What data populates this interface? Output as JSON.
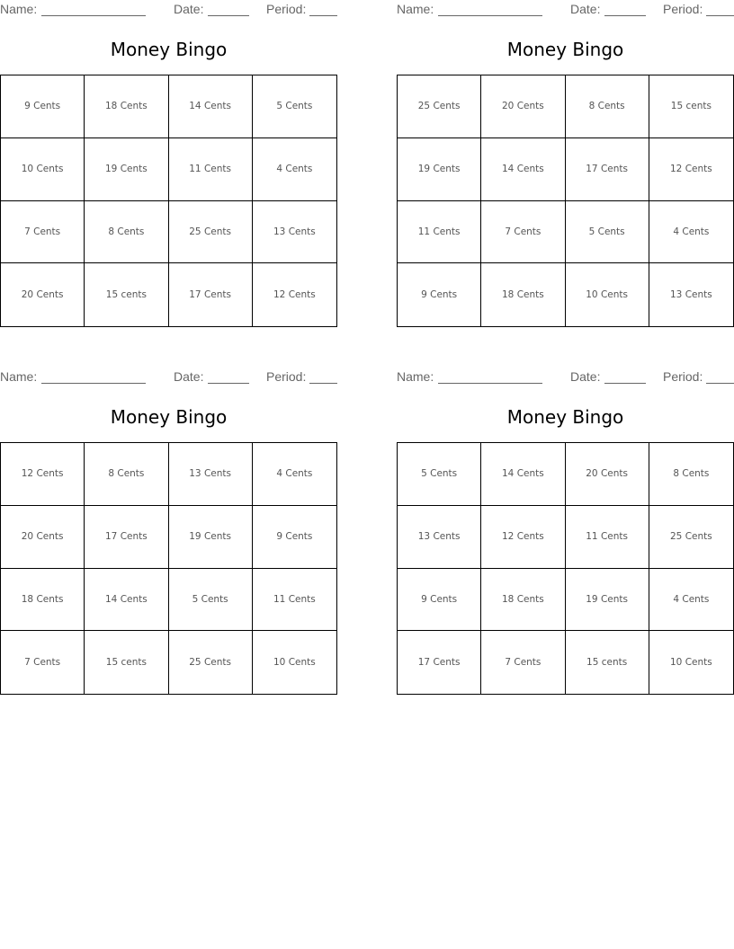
{
  "labels": {
    "name": "Name:",
    "date": "Date:",
    "period": "Period:"
  },
  "cards": [
    {
      "title": "Money Bingo",
      "cells": [
        "9 Cents",
        "18 Cents",
        "14 Cents",
        "5 Cents",
        "10 Cents",
        "19 Cents",
        "11 Cents",
        "4 Cents",
        "7 Cents",
        "8 Cents",
        "25 Cents",
        "13 Cents",
        "20 Cents",
        "15 cents",
        "17 Cents",
        "12 Cents"
      ]
    },
    {
      "title": "Money Bingo",
      "cells": [
        "25 Cents",
        "20 Cents",
        "8 Cents",
        "15 cents",
        "19 Cents",
        "14 Cents",
        "17 Cents",
        "12 Cents",
        "11 Cents",
        "7 Cents",
        "5 Cents",
        "4 Cents",
        "9 Cents",
        "18 Cents",
        "10 Cents",
        "13 Cents"
      ]
    },
    {
      "title": "Money Bingo",
      "cells": [
        "12 Cents",
        "8 Cents",
        "13 Cents",
        "4 Cents",
        "20 Cents",
        "17 Cents",
        "19 Cents",
        "9 Cents",
        "18 Cents",
        "14 Cents",
        "5 Cents",
        "11 Cents",
        "7 Cents",
        "15 cents",
        "25 Cents",
        "10 Cents"
      ]
    },
    {
      "title": "Money Bingo",
      "cells": [
        "5 Cents",
        "14 Cents",
        "20 Cents",
        "8 Cents",
        "13 Cents",
        "12 Cents",
        "11 Cents",
        "25 Cents",
        "9 Cents",
        "18 Cents",
        "19 Cents",
        "4 Cents",
        "17 Cents",
        "7 Cents",
        "15 cents",
        "10 Cents"
      ]
    }
  ]
}
